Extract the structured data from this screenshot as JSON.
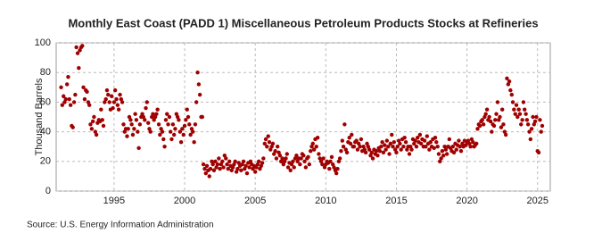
{
  "chart_data": {
    "type": "scatter",
    "title": "Monthly East Coast (PADD 1) Miscellaneous Petroleum Products Stocks at Refineries",
    "y_label": "Thousand Barrels",
    "source": "Source: U.S. Energy Information Administration",
    "xlim": [
      1990.9,
      2025.9
    ],
    "xticks": [
      1995,
      2000,
      2005,
      2010,
      2015,
      2020,
      2025
    ],
    "ylim": [
      0,
      100
    ],
    "yticks": [
      0,
      20,
      40,
      60,
      80,
      100
    ],
    "grid": true,
    "series": [
      {
        "name": "Stocks",
        "color": "#a00000",
        "x": [
          1991.25,
          1991.33,
          1991.42,
          1991.5,
          1991.58,
          1991.67,
          1991.75,
          1991.83,
          1991.92,
          1992,
          1992.08,
          1992.17,
          1992.25,
          1992.33,
          1992.42,
          1992.5,
          1992.58,
          1992.67,
          1992.75,
          1992.83,
          1992.92,
          1993,
          1993.08,
          1993.17,
          1993.25,
          1993.33,
          1993.42,
          1993.5,
          1993.58,
          1993.67,
          1993.75,
          1993.83,
          1993.92,
          1994,
          1994.08,
          1994.17,
          1994.25,
          1994.33,
          1994.42,
          1994.5,
          1994.58,
          1994.67,
          1994.75,
          1994.83,
          1994.92,
          1995,
          1995.08,
          1995.17,
          1995.25,
          1995.33,
          1995.42,
          1995.5,
          1995.58,
          1995.67,
          1995.75,
          1995.83,
          1995.92,
          1996,
          1996.08,
          1996.17,
          1996.25,
          1996.33,
          1996.42,
          1996.5,
          1996.58,
          1996.67,
          1996.75,
          1996.83,
          1996.92,
          1997,
          1997.08,
          1997.17,
          1997.25,
          1997.33,
          1997.42,
          1997.5,
          1997.58,
          1997.67,
          1997.75,
          1997.83,
          1997.92,
          1998,
          1998.08,
          1998.17,
          1998.25,
          1998.33,
          1998.42,
          1998.5,
          1998.58,
          1998.67,
          1998.75,
          1998.83,
          1998.92,
          1999,
          1999.08,
          1999.17,
          1999.25,
          1999.33,
          1999.42,
          1999.5,
          1999.58,
          1999.67,
          1999.75,
          1999.83,
          1999.92,
          2000,
          2000.08,
          2000.17,
          2000.25,
          2000.33,
          2000.42,
          2000.5,
          2000.58,
          2000.67,
          2000.75,
          2000.83,
          2000.92,
          2001,
          2001.08,
          2001.17,
          2001.25,
          2001.33,
          2001.42,
          2001.5,
          2001.58,
          2001.67,
          2001.75,
          2001.83,
          2001.92,
          2002,
          2002.08,
          2002.17,
          2002.25,
          2002.33,
          2002.42,
          2002.5,
          2002.58,
          2002.67,
          2002.75,
          2002.83,
          2002.92,
          2003,
          2003.08,
          2003.17,
          2003.25,
          2003.33,
          2003.42,
          2003.5,
          2003.58,
          2003.67,
          2003.75,
          2003.83,
          2003.92,
          2004,
          2004.08,
          2004.17,
          2004.25,
          2004.33,
          2004.42,
          2004.5,
          2004.58,
          2004.67,
          2004.75,
          2004.83,
          2004.92,
          2005,
          2005.08,
          2005.17,
          2005.25,
          2005.33,
          2005.42,
          2005.5,
          2005.58,
          2005.67,
          2005.75,
          2005.83,
          2005.92,
          2006,
          2006.08,
          2006.17,
          2006.25,
          2006.33,
          2006.42,
          2006.5,
          2006.58,
          2006.67,
          2006.75,
          2006.83,
          2006.92,
          2007,
          2007.08,
          2007.17,
          2007.25,
          2007.33,
          2007.42,
          2007.5,
          2007.58,
          2007.67,
          2007.75,
          2007.83,
          2007.92,
          2008,
          2008.08,
          2008.17,
          2008.25,
          2008.33,
          2008.42,
          2008.5,
          2008.58,
          2008.67,
          2008.75,
          2008.83,
          2008.92,
          2009,
          2009.08,
          2009.17,
          2009.25,
          2009.33,
          2009.42,
          2009.5,
          2009.58,
          2009.67,
          2009.75,
          2009.83,
          2009.92,
          2010,
          2010.08,
          2010.17,
          2010.25,
          2010.33,
          2010.42,
          2010.5,
          2010.58,
          2010.67,
          2010.75,
          2010.83,
          2010.92,
          2011,
          2011.08,
          2011.17,
          2011.25,
          2011.33,
          2011.42,
          2011.5,
          2011.58,
          2011.67,
          2011.75,
          2011.83,
          2011.92,
          2012,
          2012.08,
          2012.17,
          2012.25,
          2012.33,
          2012.42,
          2012.5,
          2012.58,
          2012.67,
          2012.75,
          2012.83,
          2012.92,
          2013,
          2013.08,
          2013.17,
          2013.25,
          2013.33,
          2013.42,
          2013.5,
          2013.58,
          2013.67,
          2013.75,
          2013.83,
          2013.92,
          2014,
          2014.08,
          2014.17,
          2014.25,
          2014.33,
          2014.42,
          2014.5,
          2014.58,
          2014.67,
          2014.75,
          2014.83,
          2014.92,
          2015,
          2015.08,
          2015.17,
          2015.25,
          2015.33,
          2015.42,
          2015.5,
          2015.58,
          2015.67,
          2015.75,
          2015.83,
          2015.92,
          2016,
          2016.08,
          2016.17,
          2016.25,
          2016.33,
          2016.42,
          2016.5,
          2016.58,
          2016.67,
          2016.75,
          2016.83,
          2016.92,
          2017,
          2017.08,
          2017.17,
          2017.25,
          2017.33,
          2017.42,
          2017.5,
          2017.58,
          2017.67,
          2017.75,
          2017.83,
          2017.92,
          2018,
          2018.08,
          2018.17,
          2018.25,
          2018.33,
          2018.42,
          2018.5,
          2018.58,
          2018.67,
          2018.75,
          2018.83,
          2018.92,
          2019,
          2019.08,
          2019.17,
          2019.25,
          2019.33,
          2019.42,
          2019.5,
          2019.58,
          2019.67,
          2019.75,
          2019.83,
          2019.92,
          2020,
          2020.08,
          2020.17,
          2020.25,
          2020.33,
          2020.42,
          2020.5,
          2020.58,
          2020.67,
          2020.75,
          2020.83,
          2020.92,
          2021,
          2021.08,
          2021.17,
          2021.25,
          2021.33,
          2021.42,
          2021.5,
          2021.58,
          2021.67,
          2021.75,
          2021.83,
          2021.92,
          2022,
          2022.08,
          2022.17,
          2022.25,
          2022.33,
          2022.42,
          2022.5,
          2022.58,
          2022.67,
          2022.75,
          2022.83,
          2022.92,
          2023,
          2023.08,
          2023.17,
          2023.25,
          2023.33,
          2023.42,
          2023.5,
          2023.58,
          2023.67,
          2023.75,
          2023.83,
          2023.92,
          2024,
          2024.08,
          2024.17,
          2024.25,
          2024.33,
          2024.42,
          2024.5,
          2024.58,
          2024.67,
          2024.75,
          2024.83,
          2024.92,
          2025,
          2025.08,
          2025.17,
          2025.25,
          2025.33
        ],
        "values": [
          70,
          58,
          64,
          60,
          62,
          72,
          77,
          62,
          58,
          44,
          43,
          60,
          65,
          97,
          93,
          83,
          95,
          97,
          98,
          70,
          62,
          68,
          67,
          60,
          58,
          45,
          42,
          47,
          50,
          40,
          38,
          46,
          48,
          47,
          55,
          48,
          44,
          60,
          62,
          68,
          65,
          60,
          55,
          64,
          56,
          60,
          68,
          62,
          58,
          55,
          65,
          62,
          60,
          45,
          40,
          42,
          37,
          42,
          50,
          48,
          45,
          38,
          42,
          52,
          48,
          40,
          29,
          45,
          50,
          52,
          50,
          48,
          56,
          60,
          46,
          42,
          40,
          50,
          52,
          48,
          50,
          52,
          55,
          45,
          38,
          42,
          40,
          35,
          30,
          48,
          52,
          45,
          50,
          40,
          35,
          45,
          38,
          42,
          52,
          50,
          48,
          40,
          33,
          42,
          38,
          44,
          48,
          55,
          50,
          45,
          38,
          42,
          40,
          33,
          45,
          60,
          80,
          72,
          65,
          50,
          50,
          18,
          15,
          12,
          17,
          14,
          10,
          15,
          20,
          18,
          14,
          20,
          16,
          18,
          22,
          15,
          18,
          20,
          16,
          24,
          22,
          18,
          15,
          20,
          17,
          14,
          16,
          18,
          20,
          13,
          15,
          19,
          17,
          14,
          18,
          20,
          15,
          17,
          12,
          19,
          16,
          20,
          18,
          15,
          17,
          13,
          16,
          18,
          20,
          15,
          17,
          19,
          22,
          32,
          35,
          30,
          37,
          33,
          28,
          30,
          32,
          25,
          27,
          22,
          30,
          26,
          24,
          20,
          22,
          18,
          20,
          22,
          25,
          16,
          19,
          14,
          18,
          20,
          16,
          22,
          24,
          20,
          22,
          18,
          22,
          25,
          24,
          20,
          16,
          22,
          23,
          18,
          27,
          30,
          32,
          28,
          35,
          30,
          36,
          25,
          22,
          20,
          18,
          22,
          16,
          18,
          20,
          19,
          15,
          20,
          23,
          18,
          16,
          14,
          12,
          15,
          20,
          22,
          27,
          34,
          30,
          45,
          28,
          26,
          33,
          36,
          32,
          38,
          30,
          30,
          33,
          34,
          28,
          32,
          30,
          35,
          27,
          30,
          28,
          26,
          32,
          30,
          28,
          24,
          26,
          22,
          28,
          25,
          27,
          24,
          29,
          27,
          30,
          33,
          26,
          31,
          28,
          34,
          30,
          25,
          32,
          38,
          30,
          33,
          28,
          26,
          30,
          34,
          32,
          28,
          35,
          30,
          36,
          33,
          28,
          30,
          25,
          30,
          28,
          35,
          32,
          34,
          30,
          36,
          33,
          38,
          32,
          35,
          30,
          34,
          30,
          37,
          32,
          28,
          33,
          30,
          35,
          29,
          36,
          33,
          30,
          25,
          20,
          22,
          27,
          24,
          30,
          28,
          25,
          30,
          35,
          29,
          27,
          30,
          26,
          32,
          28,
          31,
          34,
          30,
          27,
          32,
          30,
          34,
          31,
          33,
          34,
          32,
          30,
          35,
          33,
          30,
          31,
          32,
          42,
          45,
          44,
          47,
          48,
          45,
          50,
          52,
          55,
          48,
          50,
          47,
          40,
          45,
          44,
          48,
          52,
          60,
          48,
          50,
          43,
          55,
          45,
          40,
          38,
          76,
          72,
          74,
          68,
          65,
          60,
          55,
          52,
          58,
          50,
          55,
          52,
          45,
          48,
          60,
          55,
          52,
          48,
          45,
          40,
          35,
          42,
          50,
          45,
          47,
          50,
          27,
          26,
          48,
          40,
          44
        ]
      }
    ]
  }
}
